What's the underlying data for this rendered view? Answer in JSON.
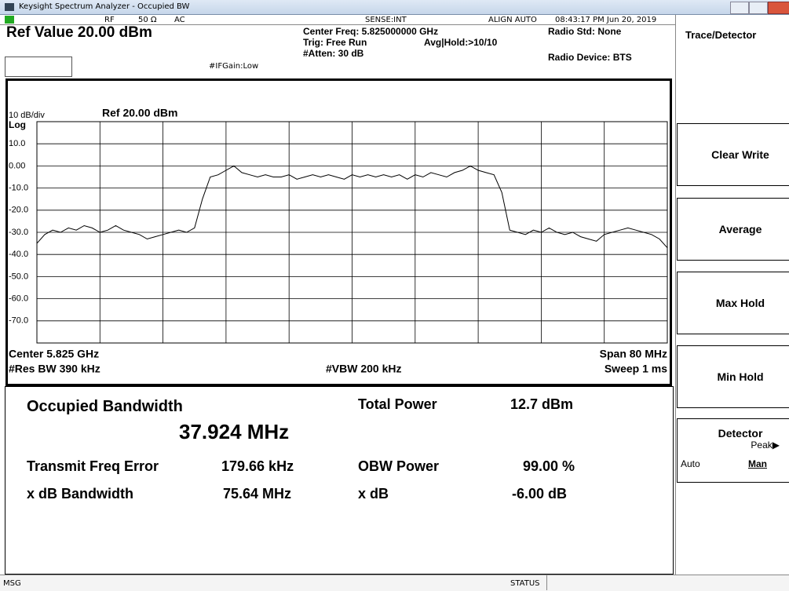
{
  "window": {
    "title": "Keysight Spectrum Analyzer - Occupied BW"
  },
  "status_bar": {
    "rf": "RF",
    "impedance": "50 Ω",
    "coupling": "AC",
    "sense": "SENSE:INT",
    "align": "ALIGN AUTO",
    "datetime": "08:43:17 PM Jun 20, 2019"
  },
  "header": {
    "ref_value": "Ref Value 20.00 dBm",
    "center_freq": "Center Freq: 5.825000000 GHz",
    "trig": "Trig: Free Run",
    "avg_hold": "Avg|Hold:>10/10",
    "atten": "#Atten: 30 dB",
    "if_gain": "#IFGain:Low",
    "radio_std": "Radio Std: None",
    "radio_device": "Radio Device: BTS"
  },
  "graph": {
    "scale": "10 dB/div",
    "ref": "Ref 20.00 dBm",
    "log": "Log",
    "center": "Center 5.825 GHz",
    "span": "Span 80 MHz",
    "res_bw": "#Res BW 390 kHz",
    "vbw": "#VBW 200 kHz",
    "sweep": "Sweep 1 ms"
  },
  "chart_data": {
    "type": "line",
    "color": "#000000",
    "ylim": [
      -80,
      20
    ],
    "yticks": [
      {
        "value": 10,
        "label": "10.0"
      },
      {
        "value": 0,
        "label": "0.00"
      },
      {
        "value": -10,
        "label": "-10.0"
      },
      {
        "value": -20,
        "label": "-20.0"
      },
      {
        "value": -30,
        "label": "-30.0"
      },
      {
        "value": -40,
        "label": "-40.0"
      },
      {
        "value": -50,
        "label": "-50.0"
      },
      {
        "value": -60,
        "label": "-60.0"
      },
      {
        "value": -70,
        "label": "-70.0"
      }
    ],
    "grid": true,
    "values": [
      -35,
      -31,
      -29,
      -30,
      -28,
      -29,
      -27,
      -28,
      -30,
      -29,
      -27,
      -29,
      -30,
      -31,
      -33,
      -32,
      -31,
      -30,
      -29,
      -30,
      -28,
      -15,
      -5,
      -4,
      -2,
      0,
      -3,
      -4,
      -5,
      -4,
      -5,
      -5,
      -4,
      -6,
      -5,
      -4,
      -5,
      -4,
      -5,
      -6,
      -4,
      -5,
      -4,
      -5,
      -4,
      -5,
      -4,
      -6,
      -4,
      -5,
      -3,
      -4,
      -5,
      -3,
      -2,
      0,
      -2,
      -3,
      -4,
      -12,
      -29,
      -30,
      -31,
      -29,
      -30,
      -28,
      -30,
      -31,
      -30,
      -32,
      -33,
      -34,
      -31,
      -30,
      -29,
      -28,
      -29,
      -30,
      -31,
      -33,
      -37
    ]
  },
  "results": {
    "obw_label": "Occupied Bandwidth",
    "obw_value": "37.924 MHz",
    "total_power_label": "Total Power",
    "total_power_value": "12.7 dBm",
    "tfe_label": "Transmit Freq Error",
    "tfe_value": "179.66 kHz",
    "obw_power_label": "OBW Power",
    "obw_power_value": "99.00 %",
    "xdb_bw_label": "x dB Bandwidth",
    "xdb_bw_value": "75.64 MHz",
    "xdb_label": "x dB",
    "xdb_value": "-6.00 dB"
  },
  "menu": {
    "title": "Trace/Detector",
    "buttons": [
      "Clear Write",
      "Average",
      "Max Hold",
      "Min Hold"
    ],
    "detector": "Detector",
    "detector_value": "Peak▶",
    "auto": "Auto",
    "man": "Man"
  },
  "footer": {
    "msg": "MSG",
    "status": "STATUS"
  }
}
